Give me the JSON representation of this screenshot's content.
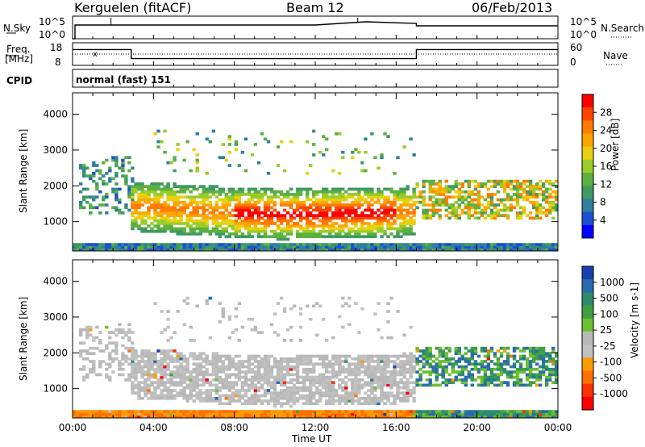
{
  "header": {
    "station": "Kerguelen (fitACF)",
    "beam": "Beam 12",
    "date": "06/Feb/2013"
  },
  "panel_labels": {
    "nsky": "N.Sky",
    "nsky_tick_top": "10^5",
    "nsky_tick_bot": "10^0",
    "nsearch": "N.Search",
    "nsearch_tick_top": "10^5",
    "nsearch_tick_bot": "10^0",
    "freq": "Freq.",
    "freq_unit": "[MHz]",
    "freq_tick_top": "18",
    "freq_tick_bot": "8",
    "nave": "Nave",
    "nave_tick_top": "60",
    "nave_tick_bot": "0",
    "cpid": "CPID",
    "cpid_value": "normal (fast) 151",
    "freq_marker": "x"
  },
  "power_colorbar": {
    "title": "Power [dB]",
    "ticks": [
      "28",
      "24",
      "20",
      "16",
      "12",
      "8",
      "4"
    ],
    "colors": [
      "#0000ff",
      "#1e4fd0",
      "#2f7fa0",
      "#3f9a60",
      "#5cb040",
      "#98cc28",
      "#e8d010",
      "#ffa500",
      "#ff7a00",
      "#ff4400",
      "#ff0000"
    ]
  },
  "velocity_colorbar": {
    "title": "Velocity [m s-1]",
    "ticks": [
      "1000",
      "500",
      "100",
      "25",
      "-25",
      "-100",
      "-500",
      "-1000"
    ],
    "colors": [
      "#1a3fb0",
      "#2a6ab0",
      "#2f8a70",
      "#3ea040",
      "#6cc030",
      "#b8b8b8",
      "#c0c0c0",
      "#ff9a00",
      "#ff7000",
      "#ff3000",
      "#ff0000"
    ]
  },
  "chart_data": [
    {
      "type": "heatmap",
      "title": "Power",
      "xlabel": "",
      "ylabel": "Slant Range [km]",
      "xlim": [
        "00:00",
        "24:00"
      ],
      "ylim": [
        180,
        4600
      ],
      "x_ticks": [
        "00:00",
        "04:00",
        "08:00",
        "12:00",
        "16:00",
        "20:00",
        "00:00"
      ],
      "y_ticks": [
        1000,
        2000,
        3000,
        4000
      ],
      "colorbar_label": "Power [dB]",
      "colorbar_ticks": [
        28,
        24,
        20,
        16,
        12,
        8,
        4
      ]
    },
    {
      "type": "heatmap",
      "title": "Velocity",
      "xlabel": "Time UT",
      "ylabel": "Slant Range [km]",
      "xlim": [
        "00:00",
        "24:00"
      ],
      "ylim": [
        180,
        4600
      ],
      "x_ticks": [
        "00:00",
        "04:00",
        "08:00",
        "12:00",
        "16:00",
        "20:00",
        "00:00"
      ],
      "y_ticks": [
        1000,
        2000,
        3000,
        4000
      ],
      "colorbar_label": "Velocity [m s-1]",
      "colorbar_ticks": [
        1000,
        500,
        100,
        25,
        -25,
        -100,
        -500,
        -1000
      ]
    },
    {
      "type": "line",
      "title": "Freq",
      "ylabel": "Freq. [MHz]",
      "ylim": [
        8,
        18
      ],
      "series": [
        {
          "x": [
            0,
            2.9,
            2.9,
            17.0,
            17.0,
            24
          ],
          "y": [
            15,
            15,
            11,
            11,
            15,
            15
          ]
        }
      ]
    }
  ]
}
